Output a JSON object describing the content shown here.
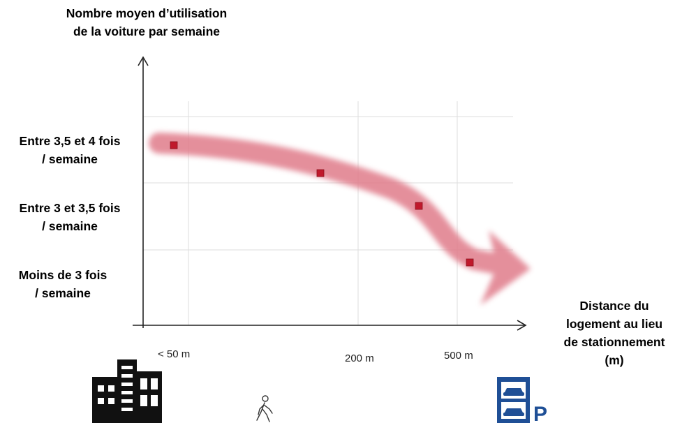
{
  "chart_data": {
    "type": "scatter",
    "title": "",
    "ylabel": "Nombre moyen d’utilisation de la voiture par semaine",
    "xlabel": "Distance du logement au lieu de stationnement (m)",
    "y_categories": [
      "Entre 3,5 et 4 fois / semaine",
      "Entre 3 et 3,5 fois / semaine",
      "Moins de 3 fois / semaine"
    ],
    "x_ticks": [
      "< 50 m",
      "200 m",
      "500 m"
    ],
    "points": [
      {
        "x": "< 50 m",
        "y": "Entre 3,5 et 4 fois / semaine"
      },
      {
        "x": "200 m",
        "y": "Entre 3,5 et 4 fois / semaine"
      },
      {
        "x": "500 m",
        "y": "Entre 3 et 3,5 fois / semaine"
      },
      {
        "x": "> 500 m",
        "y": "Moins de 3 fois / semaine"
      }
    ],
    "trend": "decreasing",
    "grid": true,
    "colors": {
      "trend_arrow": "#e07b8a",
      "marker": "#c0192c",
      "marker_border": "#8a0f1c",
      "grid": "#dddddd",
      "axis": "#222222"
    }
  },
  "labels": {
    "y_title_line1": "Nombre moyen d’utilisation",
    "y_title_line2": "de la voiture par semaine",
    "x_title_line1": "Distance du",
    "x_title_line2": "logement au lieu",
    "x_title_line3": "de stationnement",
    "x_title_line4": "(m)",
    "y_cat1_line1": "Entre 3,5 et 4 fois",
    "y_cat1_line2": "/ semaine",
    "y_cat2_line1": "Entre 3 et 3,5 fois",
    "y_cat2_line2": "/ semaine",
    "y_cat3_line1": "Moins de 3 fois",
    "y_cat3_line2": "/ semaine",
    "x_tick1": "< 50 m",
    "x_tick2": "200 m",
    "x_tick3": "500 m",
    "parking_letter": "P"
  },
  "icons": [
    "city-buildings-icon",
    "pedestrian-icon",
    "parking-garage-icon"
  ]
}
